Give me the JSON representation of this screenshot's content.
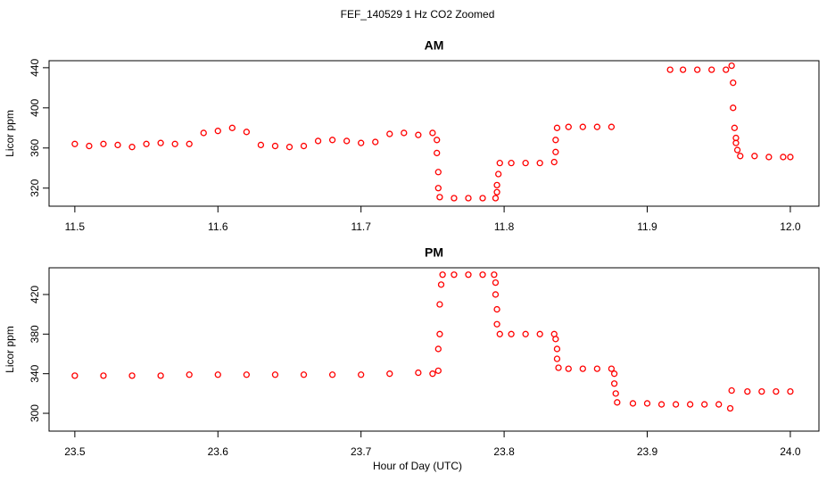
{
  "title": "FEF_140529  1 Hz CO2 Zoomed",
  "xlabel": "Hour of Day (UTC)",
  "chart_data": [
    {
      "type": "scatter",
      "title": "AM",
      "ylabel": "Licor ppm",
      "xlim": [
        11.482,
        12.02
      ],
      "ylim": [
        302,
        447
      ],
      "xticks": [
        11.5,
        11.6,
        11.7,
        11.8,
        11.9,
        {
          "value": 12,
          "label": "12.0"
        }
      ],
      "yticks": [
        320,
        360,
        400,
        440
      ],
      "x": [
        11.5,
        11.51,
        11.52,
        11.53,
        11.54,
        11.55,
        11.56,
        11.57,
        11.58,
        11.59,
        11.6,
        11.61,
        11.62,
        11.63,
        11.64,
        11.65,
        11.66,
        11.67,
        11.68,
        11.69,
        11.7,
        11.71,
        11.72,
        11.73,
        11.74,
        11.75,
        11.753,
        11.753,
        11.754,
        11.754,
        11.755,
        11.765,
        11.775,
        11.785,
        11.794,
        11.795,
        11.795,
        11.796,
        11.797,
        11.805,
        11.815,
        11.825,
        11.835,
        11.836,
        11.836,
        11.837,
        11.845,
        11.855,
        11.865,
        11.875,
        11.916,
        11.925,
        11.935,
        11.945,
        11.955,
        11.959,
        11.96,
        11.96,
        11.961,
        11.962,
        11.962,
        11.963,
        11.965,
        11.975,
        11.985,
        11.995,
        12.0
      ],
      "series": [
        {
          "color": "#ff0000",
          "values": [
            364,
            362,
            364,
            363,
            361,
            364,
            365,
            364,
            364,
            375,
            377,
            380,
            376,
            363,
            362,
            361,
            362,
            367,
            368,
            367,
            365,
            366,
            374,
            375,
            373,
            375,
            368,
            355,
            336,
            320,
            311,
            310,
            310,
            310,
            310,
            316,
            323,
            334,
            345,
            345,
            345,
            345,
            346,
            356,
            368,
            380,
            381,
            381,
            381,
            381,
            438,
            438,
            438,
            438,
            438,
            442,
            425,
            400,
            380,
            370,
            365,
            358,
            352,
            352,
            351,
            351,
            351
          ]
        }
      ]
    },
    {
      "type": "scatter",
      "title": "PM",
      "ylabel": "Licor ppm",
      "xlim": [
        23.482,
        24.02
      ],
      "ylim": [
        282,
        447
      ],
      "xticks": [
        23.5,
        23.6,
        23.7,
        23.8,
        23.9,
        {
          "value": 24,
          "label": "24.0"
        }
      ],
      "yticks": [
        300,
        340,
        380,
        420
      ],
      "x": [
        23.5,
        23.52,
        23.54,
        23.56,
        23.58,
        23.6,
        23.62,
        23.64,
        23.66,
        23.68,
        23.7,
        23.72,
        23.74,
        23.75,
        23.754,
        23.754,
        23.755,
        23.755,
        23.756,
        23.757,
        23.765,
        23.775,
        23.785,
        23.793,
        23.794,
        23.794,
        23.795,
        23.795,
        23.797,
        23.805,
        23.815,
        23.825,
        23.835,
        23.836,
        23.837,
        23.837,
        23.838,
        23.845,
        23.855,
        23.865,
        23.875,
        23.877,
        23.877,
        23.878,
        23.879,
        23.89,
        23.9,
        23.91,
        23.92,
        23.93,
        23.94,
        23.95,
        23.958,
        23.959,
        23.97,
        23.98,
        23.99,
        24.0
      ],
      "series": [
        {
          "color": "#ff0000",
          "values": [
            338,
            338,
            338,
            338,
            339,
            339,
            339,
            339,
            339,
            339,
            339,
            340,
            341,
            340,
            343,
            365,
            380,
            410,
            430,
            440,
            440,
            440,
            440,
            440,
            432,
            420,
            405,
            390,
            380,
            380,
            380,
            380,
            380,
            375,
            365,
            355,
            346,
            345,
            345,
            345,
            345,
            340,
            330,
            320,
            311,
            310,
            310,
            309,
            309,
            309,
            309,
            309,
            305,
            323,
            322,
            322,
            322,
            322
          ]
        }
      ]
    }
  ]
}
